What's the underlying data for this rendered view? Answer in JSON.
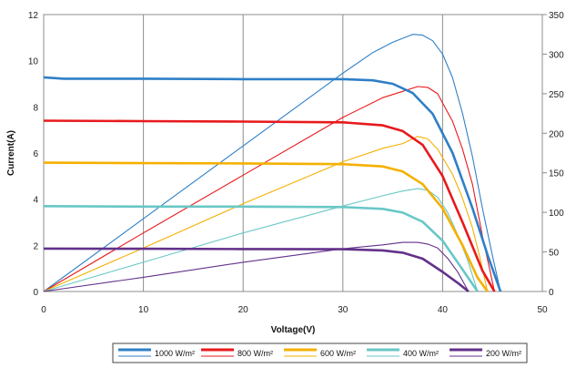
{
  "chart_data": {
    "type": "line",
    "xlabel": "Voltage(V)",
    "ylabel": "Current(A)",
    "y2label": "",
    "xlim": [
      0,
      50
    ],
    "ylim": [
      0,
      12
    ],
    "y2lim": [
      0,
      350
    ],
    "x_ticks": [
      "0",
      "10",
      "20",
      "30",
      "40",
      "50"
    ],
    "y_ticks": [
      "0",
      "2",
      "4",
      "6",
      "8",
      "10",
      "12"
    ],
    "y2_ticks": [
      "0",
      "50",
      "100",
      "150",
      "200",
      "250",
      "300",
      "350"
    ],
    "grid": "vertical",
    "legend_position": "bottom",
    "series": [
      {
        "irradiance": "1000 W/m²",
        "color": "#2f7fc7",
        "current": [
          [
            0,
            9.28
          ],
          [
            2,
            9.22
          ],
          [
            10,
            9.22
          ],
          [
            20,
            9.2
          ],
          [
            30,
            9.2
          ],
          [
            33,
            9.15
          ],
          [
            35,
            9.0
          ],
          [
            37,
            8.6
          ],
          [
            39,
            7.7
          ],
          [
            41,
            6.0
          ],
          [
            43,
            3.6
          ],
          [
            44.5,
            1.6
          ],
          [
            45.8,
            0
          ]
        ],
        "power": [
          [
            0,
            0
          ],
          [
            10,
            92
          ],
          [
            20,
            184
          ],
          [
            30,
            276
          ],
          [
            33,
            302
          ],
          [
            35,
            315
          ],
          [
            37,
            325
          ],
          [
            38,
            324
          ],
          [
            39,
            317
          ],
          [
            40,
            300
          ],
          [
            41,
            270
          ],
          [
            42,
            225
          ],
          [
            43,
            170
          ],
          [
            44,
            105
          ],
          [
            45,
            45
          ],
          [
            45.8,
            0
          ]
        ]
      },
      {
        "irradiance": "800 W/m²",
        "color": "#e8191c",
        "current": [
          [
            0,
            7.4
          ],
          [
            10,
            7.38
          ],
          [
            20,
            7.36
          ],
          [
            30,
            7.33
          ],
          [
            34,
            7.2
          ],
          [
            36,
            6.95
          ],
          [
            38,
            6.35
          ],
          [
            40,
            5.0
          ],
          [
            42,
            3.0
          ],
          [
            44,
            0.9
          ],
          [
            45.2,
            0
          ]
        ],
        "power": [
          [
            0,
            0
          ],
          [
            10,
            74
          ],
          [
            20,
            147
          ],
          [
            30,
            220
          ],
          [
            34,
            245
          ],
          [
            36,
            253
          ],
          [
            37.5,
            259
          ],
          [
            38.5,
            258
          ],
          [
            39.5,
            250
          ],
          [
            41,
            215
          ],
          [
            42,
            180
          ],
          [
            43,
            135
          ],
          [
            44,
            70
          ],
          [
            45.2,
            0
          ]
        ]
      },
      {
        "irradiance": "600 W/m²",
        "color": "#f5b000",
        "current": [
          [
            0,
            5.58
          ],
          [
            10,
            5.56
          ],
          [
            20,
            5.55
          ],
          [
            30,
            5.52
          ],
          [
            34,
            5.42
          ],
          [
            36,
            5.2
          ],
          [
            38,
            4.65
          ],
          [
            40,
            3.6
          ],
          [
            42,
            2.0
          ],
          [
            43.5,
            0.6
          ],
          [
            44.5,
            0
          ]
        ],
        "power": [
          [
            0,
            0
          ],
          [
            10,
            55
          ],
          [
            20,
            111
          ],
          [
            30,
            164
          ],
          [
            34,
            181
          ],
          [
            36,
            187
          ],
          [
            37.5,
            196
          ],
          [
            38.5,
            193
          ],
          [
            39.5,
            180
          ],
          [
            41,
            148
          ],
          [
            42,
            118
          ],
          [
            43,
            80
          ],
          [
            43.8,
            40
          ],
          [
            44.5,
            0
          ]
        ]
      },
      {
        "irradiance": "400 W/m²",
        "color": "#69c7c7",
        "current": [
          [
            0,
            3.7
          ],
          [
            10,
            3.68
          ],
          [
            20,
            3.68
          ],
          [
            30,
            3.66
          ],
          [
            34,
            3.58
          ],
          [
            36,
            3.42
          ],
          [
            38,
            3.02
          ],
          [
            40,
            2.2
          ],
          [
            42,
            0.95
          ],
          [
            43.5,
            0
          ]
        ],
        "power": [
          [
            0,
            0
          ],
          [
            10,
            37
          ],
          [
            20,
            74
          ],
          [
            30,
            108
          ],
          [
            34,
            121
          ],
          [
            36,
            127
          ],
          [
            37.5,
            130
          ],
          [
            38.5,
            128
          ],
          [
            39.5,
            119
          ],
          [
            40.5,
            100
          ],
          [
            41.5,
            72
          ],
          [
            42.5,
            40
          ],
          [
            43.5,
            0
          ]
        ]
      },
      {
        "irradiance": "200 W/m²",
        "color": "#63318a",
        "current": [
          [
            0,
            1.86
          ],
          [
            10,
            1.85
          ],
          [
            20,
            1.84
          ],
          [
            30,
            1.83
          ],
          [
            34,
            1.78
          ],
          [
            36,
            1.68
          ],
          [
            38,
            1.42
          ],
          [
            40,
            0.85
          ],
          [
            41.5,
            0.38
          ],
          [
            42.6,
            0
          ]
        ],
        "power": [
          [
            0,
            0
          ],
          [
            10,
            18
          ],
          [
            20,
            37
          ],
          [
            30,
            54
          ],
          [
            34,
            59
          ],
          [
            36,
            62
          ],
          [
            37.5,
            62
          ],
          [
            38.5,
            60
          ],
          [
            39.5,
            55
          ],
          [
            40.5,
            42
          ],
          [
            41.5,
            25
          ],
          [
            42.6,
            0
          ]
        ]
      }
    ]
  }
}
